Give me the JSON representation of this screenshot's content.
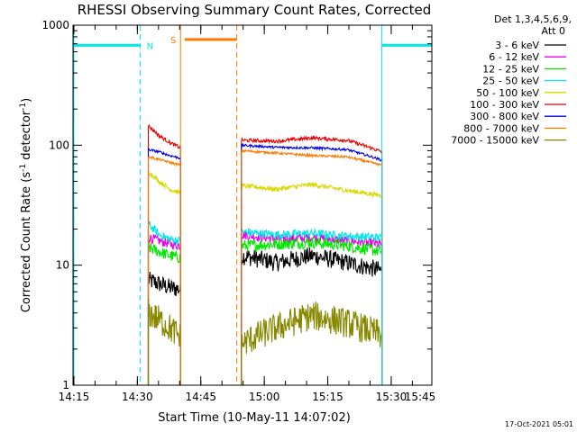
{
  "chart_data": {
    "type": "line",
    "title": "RHESSI Observing Summary Count Rates, Corrected",
    "xlabel": "Start Time (10-May-11 14:07:02)",
    "ylabel_main": "Corrected Count Rate (s",
    "ylabel_sup1": "-1",
    "ylabel_mid": " detector",
    "ylabel_sup2": "-1",
    "ylabel_end": ")",
    "y_scale": "log",
    "ylim": [
      1,
      1000
    ],
    "xlim_minutes": [
      14.8,
      99.6
    ],
    "x_ticks": [
      {
        "label": "14:15",
        "minute": 15
      },
      {
        "label": "14:30",
        "minute": 30
      },
      {
        "label": "14:45",
        "minute": 45
      },
      {
        "label": "15:00",
        "minute": 60
      },
      {
        "label": "15:15",
        "minute": 75
      },
      {
        "label": "15:30",
        "minute": 90
      },
      {
        "label": "15:45",
        "minute": 105
      }
    ],
    "y_ticks": [
      {
        "label": "1",
        "value": 1
      },
      {
        "label": "10",
        "value": 10
      },
      {
        "label": "100",
        "value": 100
      },
      {
        "label": "1000",
        "value": 1000
      }
    ],
    "legend_header": [
      "Det 1,3,4,5,6,9,",
      "Att 0"
    ],
    "legend_position": "right",
    "timestamp": "17-Oct-2021 05:01",
    "intervals": [
      {
        "start": 32.6,
        "end": 40.2
      },
      {
        "start": 54.6,
        "end": 87.8
      }
    ],
    "series": [
      {
        "name": "3 - 6 keV",
        "color": "#000000",
        "level1": [
          7.5,
          7.0,
          6.5,
          6.3
        ],
        "level2": [
          12.0,
          10.5,
          12.0,
          10.5,
          9.0
        ],
        "noise": 0.15
      },
      {
        "name": "6 - 12 keV",
        "color": "#e800e8",
        "level1": [
          17.0,
          16.0,
          15.0,
          14.5
        ],
        "level2": [
          18.0,
          16.5,
          17.0,
          16.0,
          15.0
        ],
        "noise": 0.08
      },
      {
        "name": "12 - 25 keV",
        "color": "#00e800",
        "level1": [
          14.0,
          13.0,
          12.0,
          11.5
        ],
        "level2": [
          14.5,
          15.0,
          15.5,
          14.5,
          13.0
        ],
        "noise": 0.1
      },
      {
        "name": "25 - 50 keV",
        "color": "#00e8e8",
        "level1": [
          22.0,
          18.0,
          16.5,
          16.0
        ],
        "level2": [
          19.0,
          18.0,
          18.5,
          17.5,
          17.0
        ],
        "noise": 0.07
      },
      {
        "name": "50 - 100 keV",
        "color": "#d8d800",
        "level1": [
          60.0,
          50.0,
          43.0,
          40.0
        ],
        "level2": [
          46.0,
          43.0,
          47.0,
          42.0,
          38.0
        ],
        "noise": 0.04
      },
      {
        "name": "100 - 300 keV",
        "color": "#e80000",
        "level1": [
          145.0,
          120.0,
          105.0,
          95.0
        ],
        "level2": [
          110.0,
          108.0,
          115.0,
          110.0,
          88.0
        ],
        "noise": 0.03
      },
      {
        "name": "300 - 800 keV",
        "color": "#0000e8",
        "level1": [
          92.0,
          88.0,
          82.0,
          78.0
        ],
        "level2": [
          100.0,
          96.0,
          95.0,
          92.0,
          75.0
        ],
        "noise": 0.02
      },
      {
        "name": "800 - 7000 keV",
        "color": "#ff7800",
        "level1": [
          80.0,
          76.0,
          72.0,
          68.0
        ],
        "level2": [
          90.0,
          86.0,
          82.0,
          80.0,
          68.0
        ],
        "noise": 0.02
      },
      {
        "name": "7000 - 15000 keV",
        "color": "#888800",
        "level1": [
          4.0,
          3.5,
          3.0,
          2.5
        ],
        "level2": [
          2.2,
          3.0,
          3.8,
          3.3,
          2.6
        ],
        "noise": 0.25
      }
    ],
    "annotations": [
      {
        "label": "N",
        "color": "#00e8e8",
        "y_value": 680,
        "segments": [
          [
            14.8,
            30.7
          ],
          [
            87.8,
            99.6
          ]
        ],
        "dashes": [
          30.7,
          99.6
        ],
        "solids": [
          15.0,
          87.8
        ],
        "label_minute": 33.0
      },
      {
        "label": "S",
        "color": "#ff7800",
        "y_value": 760,
        "segments": [
          [
            41.2,
            53.5
          ]
        ],
        "dashes": [
          53.5
        ],
        "solids": [
          40.2
        ],
        "label_minute": 38.5
      }
    ]
  }
}
